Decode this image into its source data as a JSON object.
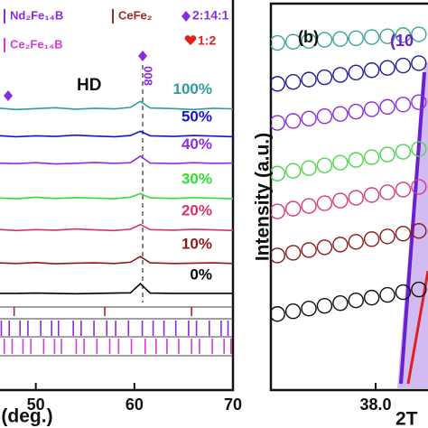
{
  "chart_data": [
    {
      "type": "line",
      "x_label": "(deg.)",
      "annotations": [
        "HD",
        "008"
      ],
      "xlim": [
        46,
        70
      ],
      "xticks": [
        50,
        60,
        70
      ],
      "ylim": [
        0,
        100
      ],
      "references": [
        {
          "name": "Nd₂Fe₁₄B",
          "color": "#8a2be2",
          "positions": [
            46.5,
            47.3,
            48.4,
            49.2,
            50.5,
            51.6,
            52.3,
            53.8,
            54.6,
            55.9,
            57.2,
            58.1,
            59.4,
            60.8,
            61.9,
            63.0,
            64.2,
            65.5,
            66.3,
            67.6,
            68.8,
            69.5
          ]
        },
        {
          "name": "CeFe₂",
          "color": "#a0282a",
          "positions": [
            47.8,
            57.0,
            65.8
          ]
        },
        {
          "name": "Ce₂Fe₁₄B",
          "color": "#d63cd6",
          "positions": [
            46.8,
            47.6,
            48.7,
            49.5,
            50.8,
            51.9,
            52.6,
            54.1,
            54.9,
            56.2,
            57.5,
            58.4,
            59.7,
            61.1,
            62.2,
            63.3,
            64.5,
            65.8,
            66.6,
            67.9,
            69.1,
            69.8
          ]
        }
      ],
      "phase_markers": [
        {
          "name": "2:14:1",
          "color": "#8a2be2"
        },
        {
          "name": "1:2",
          "color": "#e02020"
        }
      ],
      "x": [
        46,
        48,
        50,
        52,
        54,
        56,
        58,
        59.6,
        60.6,
        61.6,
        64,
        66,
        68,
        70
      ],
      "series": [
        {
          "name": "100%",
          "color": "#2e9c9c",
          "values": [
            64.3,
            63.8,
            64.1,
            64.4,
            63.9,
            64.2,
            64.0,
            64.5,
            66.5,
            64.3,
            64.1,
            63.8,
            64.2,
            64.0
          ]
        },
        {
          "name": "50%",
          "color": "#1515d0",
          "values": [
            55.2,
            54.8,
            55.1,
            54.9,
            55.3,
            55.0,
            54.8,
            55.2,
            56.6,
            55.1,
            54.9,
            55.2,
            55.0,
            54.8
          ]
        },
        {
          "name": "40%",
          "color": "#8e2ee0",
          "values": [
            46.1,
            45.9,
            46.2,
            45.8,
            46.0,
            46.3,
            46.0,
            46.2,
            48.4,
            46.1,
            45.9,
            46.2,
            46.0,
            46.1
          ]
        },
        {
          "name": "30%",
          "color": "#33dd33",
          "values": [
            34.6,
            34.3,
            34.8,
            34.4,
            34.7,
            34.5,
            34.3,
            34.8,
            36.0,
            34.6,
            34.4,
            34.7,
            34.5,
            34.3
          ]
        },
        {
          "name": "20%",
          "color": "#d6336e",
          "values": [
            24.2,
            23.8,
            24.1,
            23.9,
            24.3,
            24.0,
            23.8,
            24.2,
            25.8,
            24.1,
            23.9,
            24.2,
            24.0,
            23.8
          ]
        },
        {
          "name": "10%",
          "color": "#8b1a1a",
          "values": [
            13.1,
            12.9,
            13.2,
            12.8,
            13.0,
            13.1,
            12.9,
            13.3,
            15.2,
            13.1,
            12.9,
            13.0,
            13.1,
            12.9
          ]
        },
        {
          "name": "0%",
          "color": "#000000",
          "values": [
            3.0,
            3.0,
            3.1,
            3.0,
            2.9,
            3.0,
            3.1,
            3.2,
            6.2,
            3.1,
            3.0,
            3.0,
            3.0,
            3.0
          ]
        }
      ]
    },
    {
      "type": "scatter",
      "title": "(b)",
      "annotation": "(10",
      "x_label": "2T",
      "y_label": "Intensity (a.u.)",
      "xlim": [
        37.2,
        38.4
      ],
      "xticks": [
        {
          "value": 38.0,
          "label": "38.0"
        }
      ],
      "ylim": [
        0,
        100
      ],
      "x": [
        37.25,
        37.37,
        37.49,
        37.61,
        37.73,
        37.85,
        37.97,
        38.09,
        38.21,
        38.33
      ],
      "series": [
        {
          "color": "#3aa59a",
          "values": [
            89.0,
            89.3,
            89.5,
            89.8,
            90.0,
            90.2,
            90.5,
            90.7,
            91.0,
            91.2
          ]
        },
        {
          "color": "#1d1d9e",
          "values": [
            78.5,
            79.0,
            79.6,
            80.2,
            80.8,
            81.4,
            82.0,
            82.6,
            83.2,
            83.8
          ]
        },
        {
          "color": "#8b2be0",
          "values": [
            68.5,
            69.0,
            69.6,
            70.2,
            70.8,
            71.4,
            72.0,
            72.6,
            73.2,
            73.8
          ]
        },
        {
          "color": "#4cd64c",
          "values": [
            55.5,
            56.2,
            56.9,
            57.6,
            58.3,
            59.0,
            59.7,
            60.4,
            61.1,
            61.8
          ]
        },
        {
          "color": "#d63c7c",
          "values": [
            45.8,
            46.5,
            47.2,
            47.9,
            48.6,
            49.3,
            50.0,
            50.7,
            51.4,
            52.1
          ]
        },
        {
          "color": "#8b1a1a",
          "values": [
            34.5,
            35.2,
            35.9,
            36.6,
            37.3,
            38.0,
            38.7,
            39.4,
            40.1,
            40.8
          ]
        },
        {
          "color": "#111111",
          "values": [
            19.5,
            20.2,
            20.9,
            21.6,
            22.3,
            23.0,
            23.7,
            24.4,
            25.1,
            25.8
          ]
        }
      ]
    }
  ]
}
